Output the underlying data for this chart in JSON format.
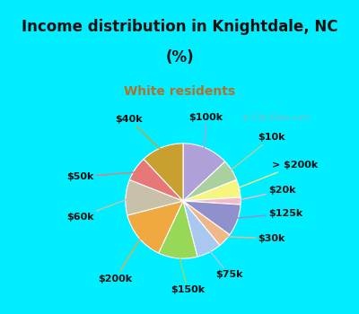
{
  "title_line1": "Income distribution in Knightdale, NC",
  "title_line2": "(%)",
  "subtitle": "White residents",
  "title_color": "#111111",
  "subtitle_color": "#b07030",
  "bg_cyan": "#00eeff",
  "bg_chart_color": "#d8f0e0",
  "labels": [
    "$100k",
    "$10k",
    "> $200k",
    "$20k",
    "$125k",
    "$30k",
    "$75k",
    "$150k",
    "$200k",
    "$60k",
    "$50k",
    "$40k"
  ],
  "values": [
    13,
    6,
    5,
    2,
    9,
    4,
    7,
    11,
    14,
    10,
    7,
    12
  ],
  "colors": [
    "#b0a0d8",
    "#aad0a0",
    "#f5f580",
    "#f8b8c8",
    "#9090cc",
    "#f0b888",
    "#a8c8f0",
    "#98d858",
    "#f0a840",
    "#c8c0a8",
    "#e87878",
    "#c8a030"
  ],
  "label_fontsize": 8,
  "title_fontsize": 12,
  "subtitle_fontsize": 10,
  "watermark": "City-Data.com"
}
